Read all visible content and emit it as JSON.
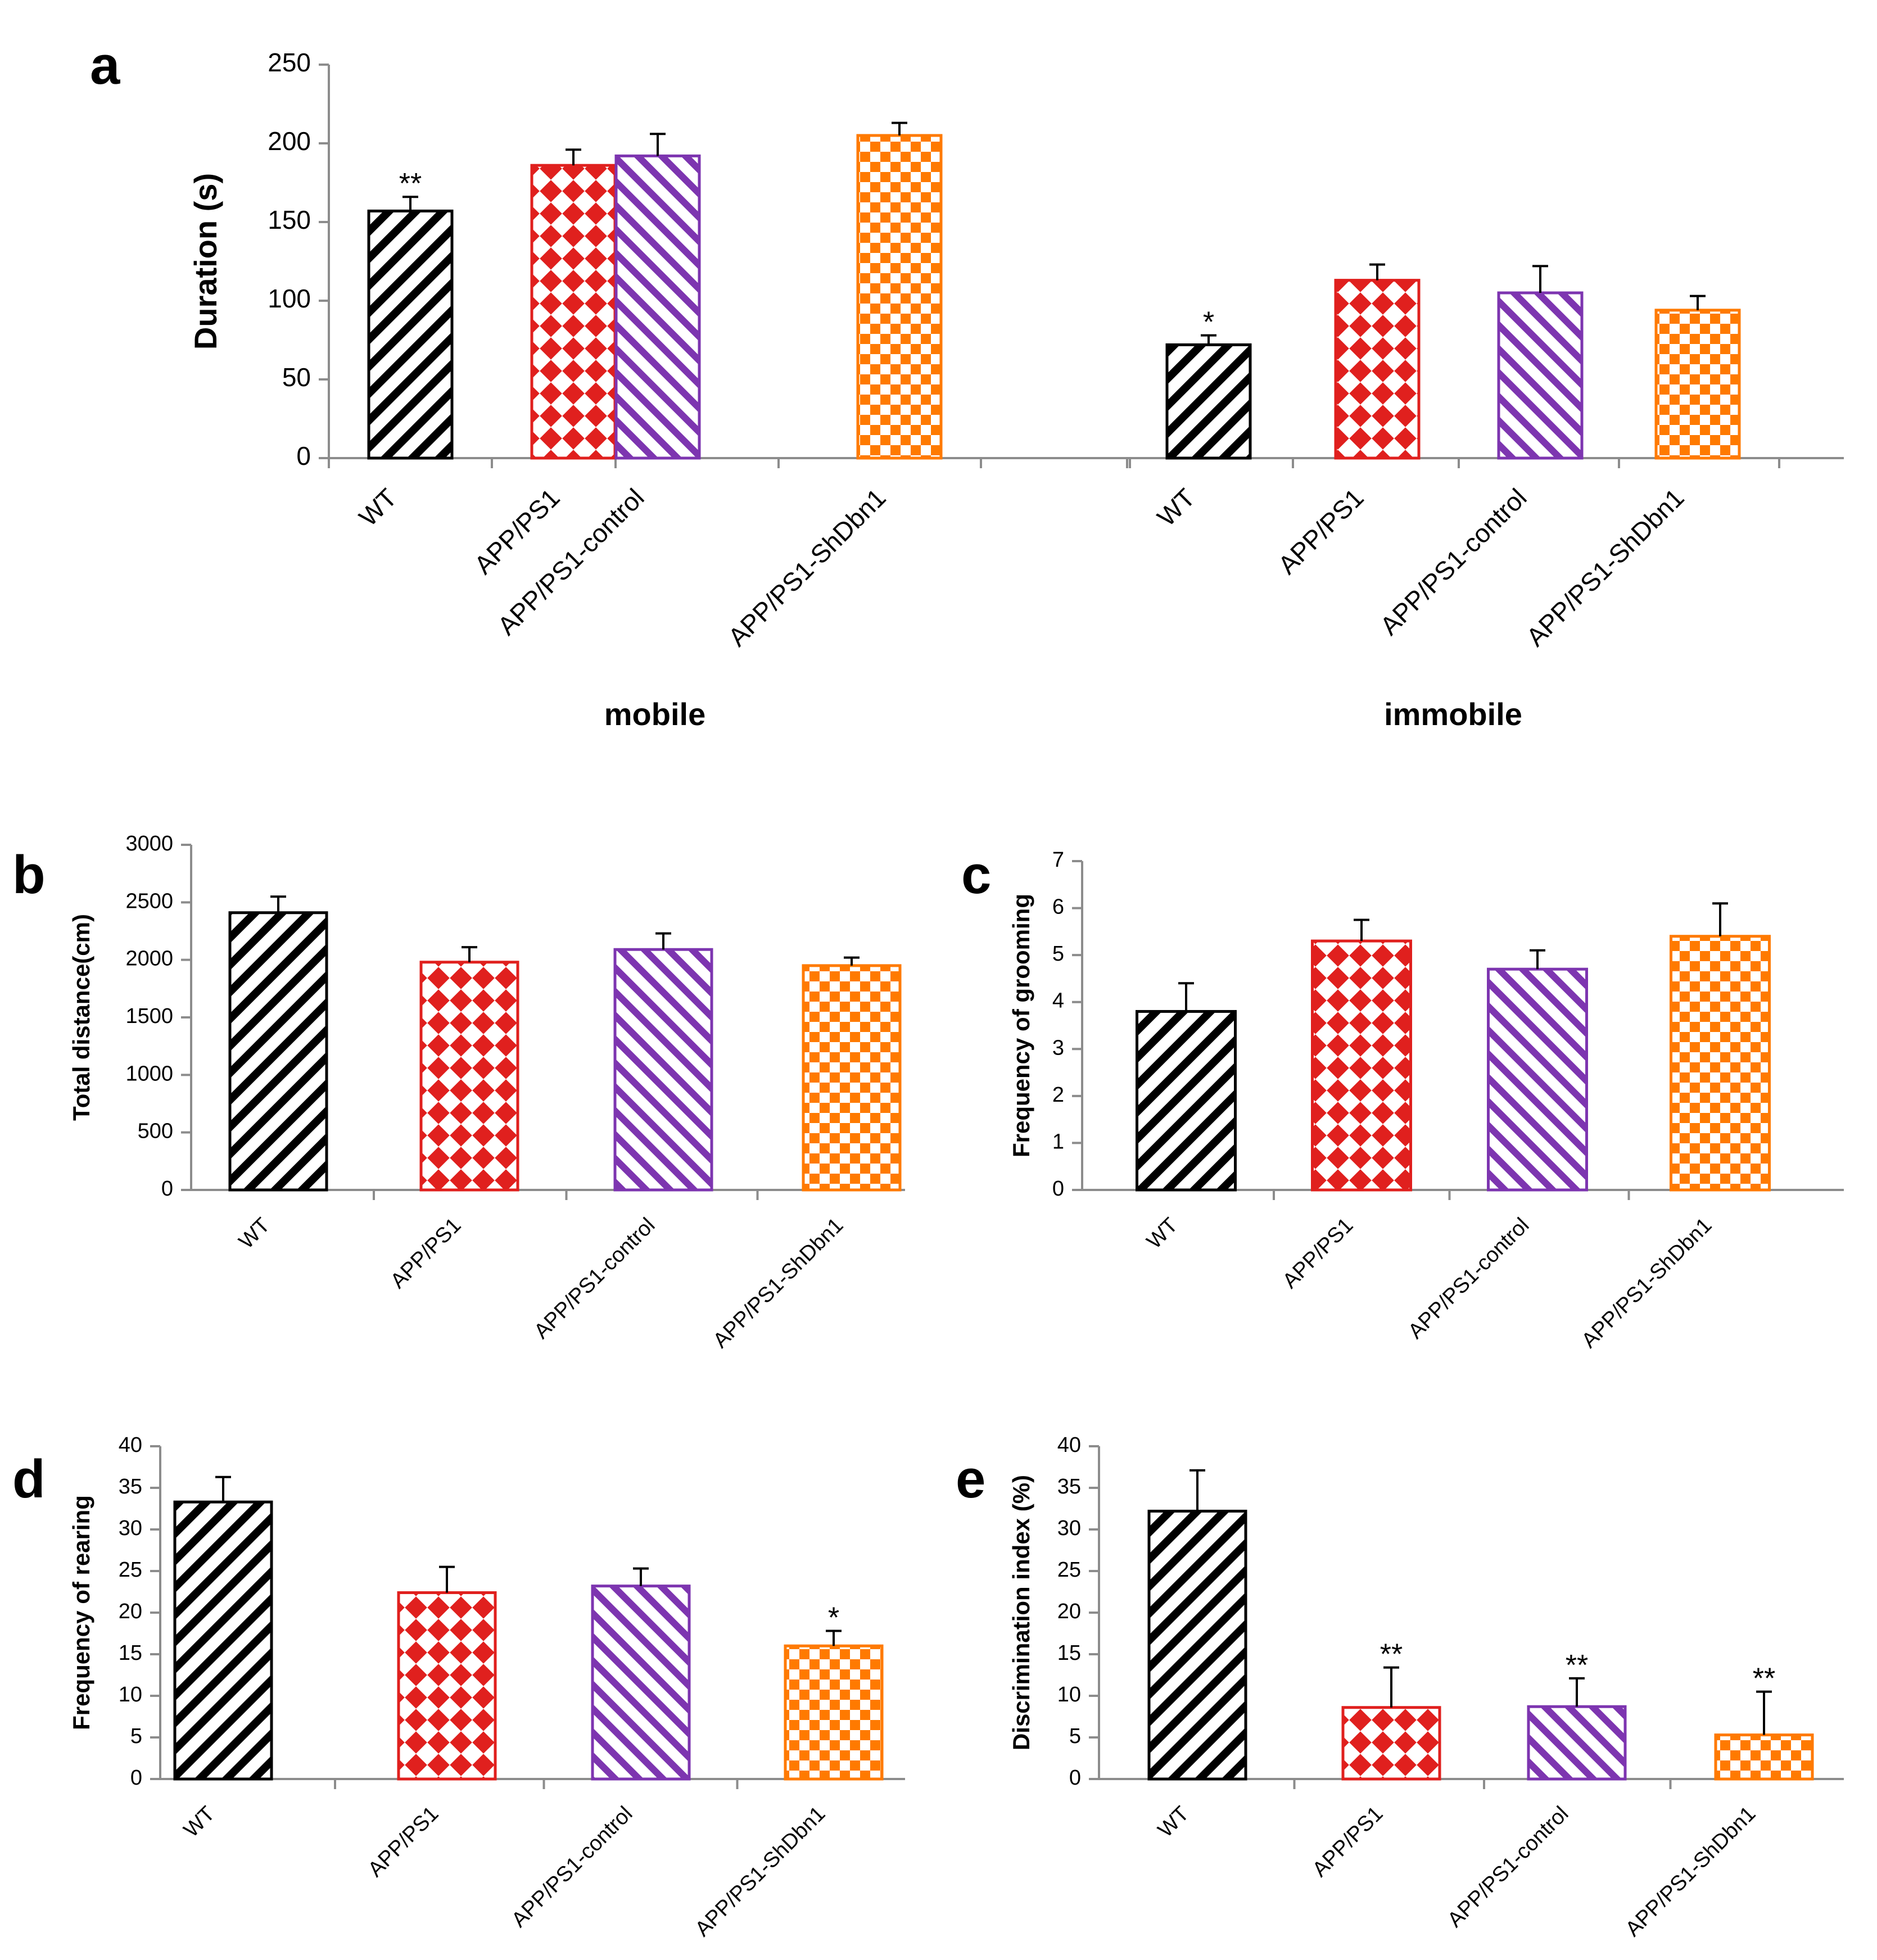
{
  "colors": {
    "WT": "#000000",
    "APP/PS1": "#e0201e",
    "APP/PS1-control": "#7d35b0",
    "APP/PS1-ShDbn1": "#ff7a00",
    "axis": "#8c8c8c"
  },
  "chart_data": [
    {
      "id": "a",
      "panel_label": "a",
      "type": "bar",
      "title": "",
      "ylabel": "Duration (s)",
      "ylim": [
        0,
        250
      ],
      "yticks": [
        "0",
        "50",
        "100",
        "150",
        "200",
        "250"
      ],
      "groups": [
        "mobile",
        "immobile"
      ],
      "categories": [
        "WT",
        "APP/PS1",
        "APP/PS1-control",
        "APP/PS1-ShDbn1"
      ],
      "series": [
        {
          "name": "mobile",
          "values": [
            157,
            186,
            192,
            205
          ],
          "errors": [
            9,
            10,
            14,
            8
          ],
          "sig": [
            "**",
            "",
            "",
            ""
          ]
        },
        {
          "name": "immobile",
          "values": [
            72,
            113,
            105,
            94
          ],
          "errors": [
            6,
            10,
            17,
            9
          ],
          "sig": [
            "*",
            "",
            "",
            ""
          ]
        }
      ]
    },
    {
      "id": "b",
      "panel_label": "b",
      "type": "bar",
      "title": "",
      "ylabel": "Total distance(cm)",
      "ylim": [
        0,
        3000
      ],
      "yticks": [
        "0",
        "500",
        "1000",
        "1500",
        "2000",
        "2500",
        "3000"
      ],
      "categories": [
        "WT",
        "APP/PS1",
        "APP/PS1-control",
        "APP/PS1-ShDbn1"
      ],
      "values": [
        2410,
        1980,
        2090,
        1950
      ],
      "errors": [
        140,
        130,
        140,
        70
      ],
      "sig": [
        "",
        "",
        "",
        ""
      ]
    },
    {
      "id": "c",
      "panel_label": "c",
      "type": "bar",
      "title": "",
      "ylabel": "Frequency of grooming",
      "ylim": [
        0,
        7
      ],
      "yticks": [
        "0",
        "1",
        "2",
        "3",
        "4",
        "5",
        "6",
        "7"
      ],
      "categories": [
        "WT",
        "APP/PS1",
        "APP/PS1-control",
        "APP/PS1-ShDbn1"
      ],
      "values": [
        3.8,
        5.3,
        4.7,
        5.4
      ],
      "errors": [
        0.6,
        0.45,
        0.4,
        0.7
      ],
      "sig": [
        "",
        "",
        "",
        ""
      ]
    },
    {
      "id": "d",
      "panel_label": "d",
      "type": "bar",
      "title": "",
      "ylabel": "Frequency of rearing",
      "ylim": [
        0,
        40
      ],
      "yticks": [
        "0",
        "5",
        "10",
        "15",
        "20",
        "25",
        "30",
        "35",
        "40"
      ],
      "categories": [
        "WT",
        "APP/PS1",
        "APP/PS1-control",
        "APP/PS1-ShDbn1"
      ],
      "values": [
        33.3,
        22.4,
        23.2,
        16.0
      ],
      "errors": [
        3.0,
        3.1,
        2.1,
        1.8
      ],
      "sig": [
        "",
        "",
        "",
        "*"
      ]
    },
    {
      "id": "e",
      "panel_label": "e",
      "type": "bar",
      "title": "",
      "ylabel": "Discrimination index (%)",
      "ylim": [
        0,
        40
      ],
      "yticks": [
        "0",
        "5",
        "10",
        "15",
        "20",
        "25",
        "30",
        "35",
        "40"
      ],
      "categories": [
        "WT",
        "APP/PS1",
        "APP/PS1-control",
        "APP/PS1-ShDbn1"
      ],
      "values": [
        32.2,
        8.6,
        8.7,
        5.3
      ],
      "errors": [
        4.9,
        4.8,
        3.4,
        5.2
      ],
      "sig": [
        "",
        "**",
        "**",
        "**"
      ]
    }
  ]
}
